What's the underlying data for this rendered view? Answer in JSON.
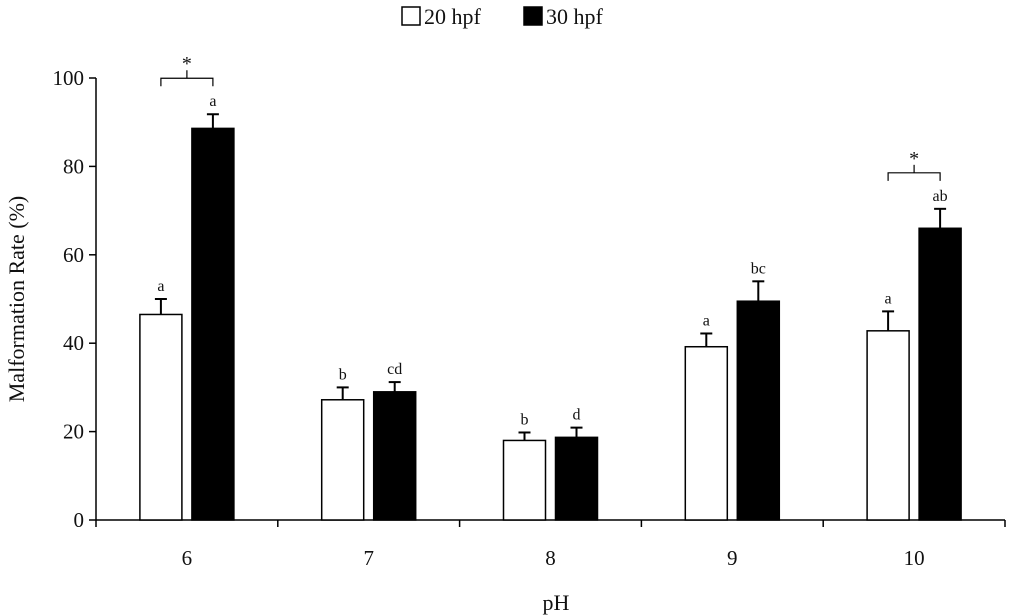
{
  "chart_data": {
    "type": "bar",
    "title": "",
    "xlabel": "pH",
    "ylabel": "Malformation Rate (%)",
    "ylim": [
      0,
      100
    ],
    "yticks": [
      "0",
      "20",
      "40",
      "60",
      "80",
      "100"
    ],
    "categories": [
      "6",
      "7",
      "8",
      "9",
      "10"
    ],
    "legend_position": "top-center",
    "series": [
      {
        "name": "20 hpf",
        "color": "#ffffff",
        "values": [
          46.5,
          27.2,
          18.0,
          39.2,
          42.8
        ],
        "errors": [
          3.5,
          2.8,
          1.8,
          3.0,
          4.4
        ],
        "letters": [
          "a",
          "b",
          "b",
          "a",
          "a"
        ]
      },
      {
        "name": "30 hpf",
        "color": "#000000",
        "values": [
          88.6,
          29.0,
          18.7,
          49.5,
          66.0
        ],
        "errors": [
          3.2,
          2.2,
          2.2,
          4.5,
          4.4
        ],
        "letters": [
          "a",
          "cd",
          "d",
          "bc",
          "ab"
        ]
      }
    ],
    "significance": [
      {
        "category": "6",
        "label": "*"
      },
      {
        "category": "10",
        "label": "*"
      }
    ]
  }
}
